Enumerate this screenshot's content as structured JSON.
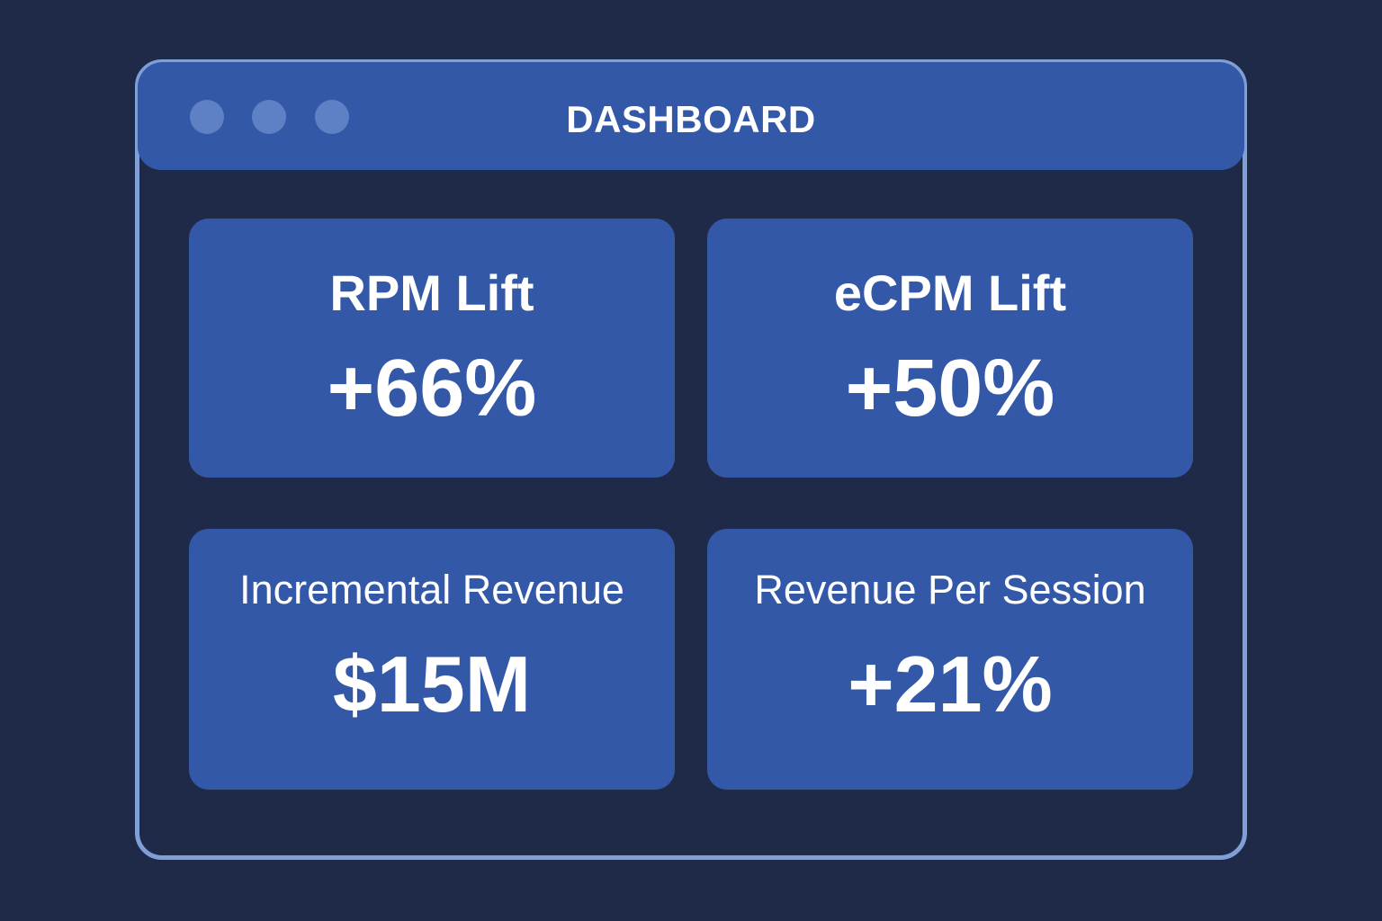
{
  "window": {
    "title": "DASHBOARD",
    "controls": [
      "window-dot",
      "window-dot",
      "window-dot"
    ]
  },
  "metrics": [
    {
      "label": "RPM Lift",
      "value": "+66%"
    },
    {
      "label": "eCPM Lift",
      "value": "+50%"
    },
    {
      "label": "Incremental Revenue",
      "value": "$15M"
    },
    {
      "label": "Revenue Per Session",
      "value": "+21%"
    }
  ],
  "colors": {
    "background": "#1f2a48",
    "titlebar": "#3458a8",
    "card": "#3458a8",
    "border": "#7f9fd6",
    "dot": "#5e80c4",
    "text": "#ffffff"
  }
}
